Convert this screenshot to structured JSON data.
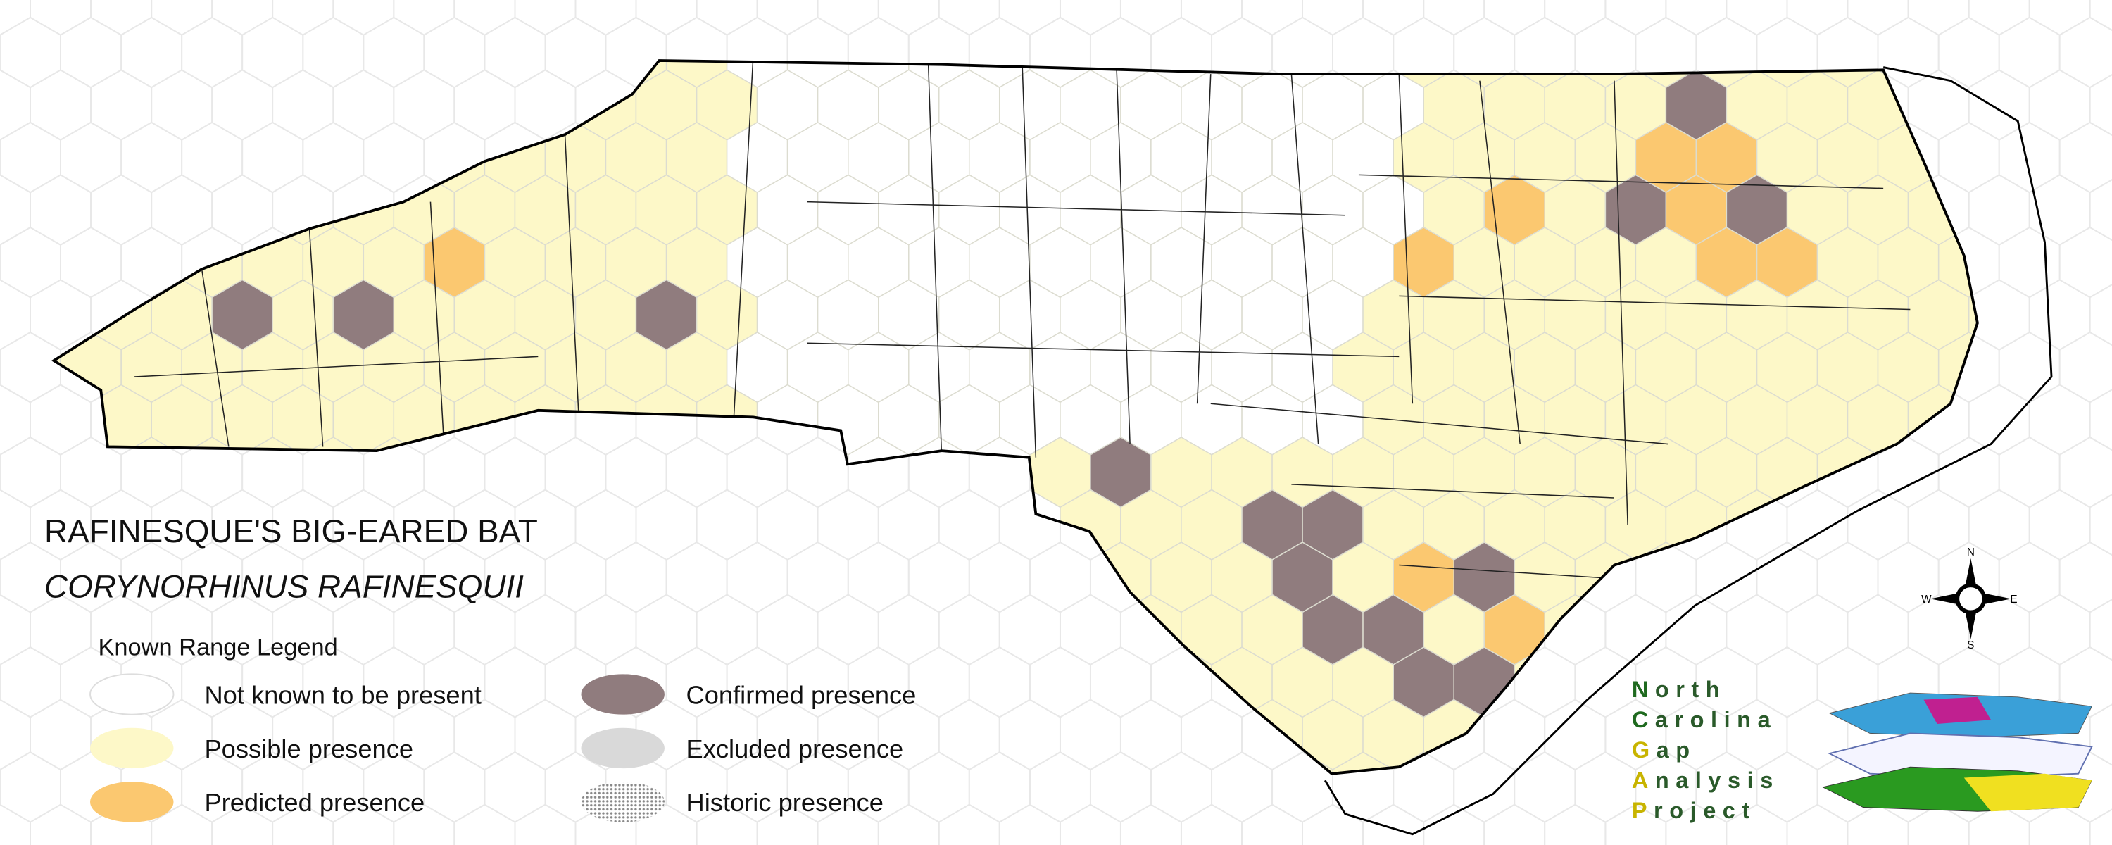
{
  "title": "RAFINESQUE'S BIG-EARED BAT",
  "subtitle": "CORYNORHINUS RAFINESQUII",
  "legend": {
    "title": "Known Range Legend",
    "items": [
      {
        "label": "Not known to be present",
        "color": "#ffffff"
      },
      {
        "label": "Possible presence",
        "color": "#fdf8c8"
      },
      {
        "label": "Predicted presence",
        "color": "#fbc870"
      },
      {
        "label": "Confirmed presence",
        "color": "#907c7e"
      },
      {
        "label": "Excluded presence",
        "color": "#d9d9d9"
      },
      {
        "label": "Historic presence",
        "color": "#9a9a9a"
      }
    ]
  },
  "compass": {
    "north": "N",
    "south": "S",
    "east": "E",
    "west": "W"
  },
  "logo": {
    "words": [
      "North",
      "Carolina",
      "Gap",
      "Analysis",
      "Project"
    ]
  }
}
